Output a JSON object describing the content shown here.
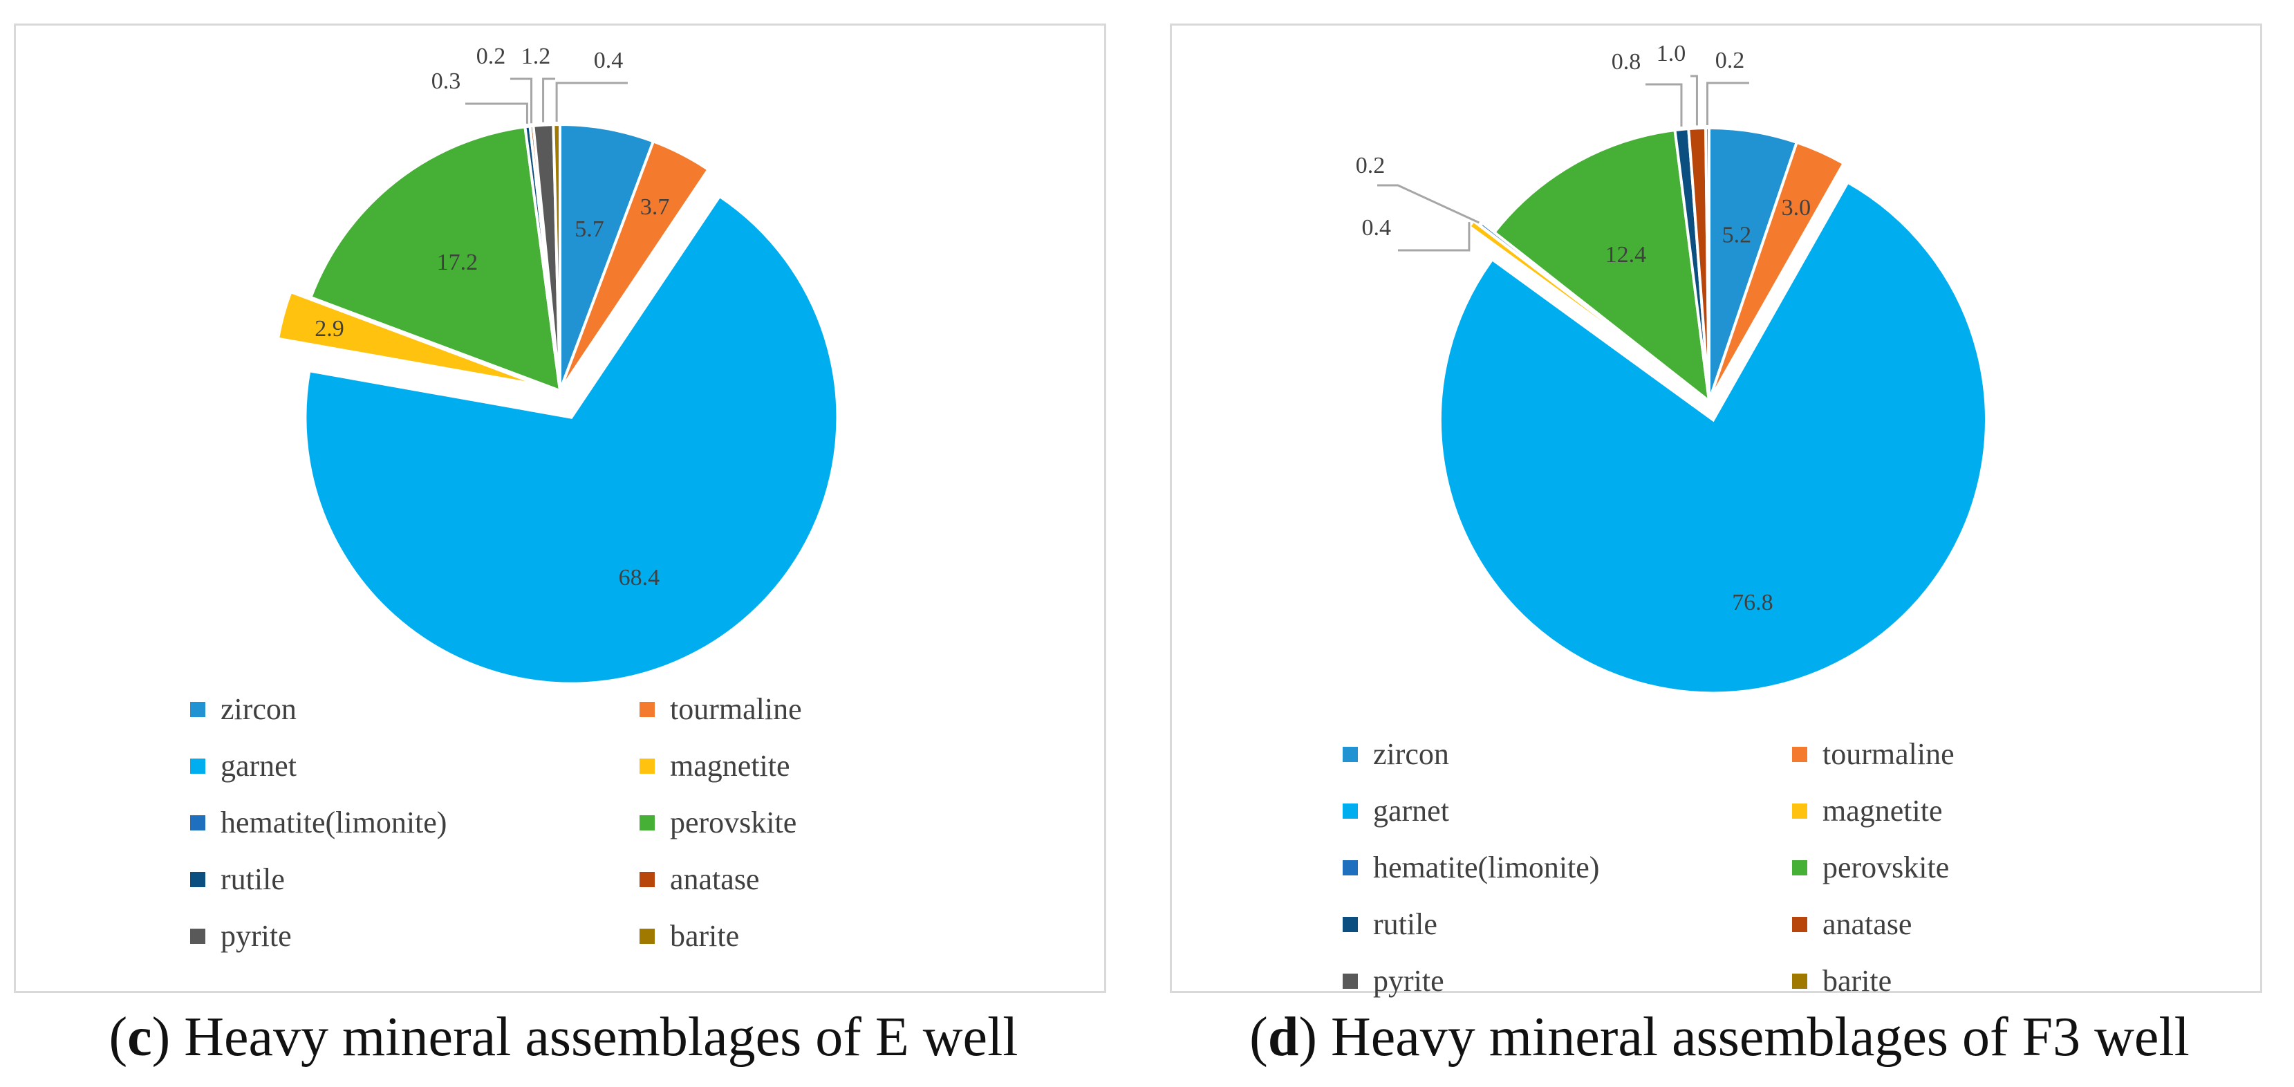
{
  "legend_categories": [
    "zircon",
    "tourmaline",
    "garnet",
    "magnetite",
    "hematite(limonite)",
    "perovskite",
    "rutile",
    "anatase",
    "pyrite",
    "barite"
  ],
  "colors": {
    "zircon": "#2193D3",
    "tourmaline": "#F47B2E",
    "garnet": "#00AEEF",
    "magnetite": "#FFC20E",
    "hematite(limonite)": "#1F6FBF",
    "perovskite": "#45B035",
    "rutile": "#0A4F80",
    "anatase": "#B8460B",
    "pyrite": "#595959",
    "barite": "#A07A00"
  },
  "chart_data": [
    {
      "type": "pie",
      "title": "Heavy mineral assemblages of E well",
      "panel_letter": "c",
      "caption_text": "Heavy mineral assemblages of E well",
      "slices": [
        {
          "name": "zircon",
          "value": 5.7,
          "label": "5.7"
        },
        {
          "name": "tourmaline",
          "value": 3.7,
          "label": "3.7"
        },
        {
          "name": "garnet",
          "value": 68.4,
          "label": "68.4"
        },
        {
          "name": "magnetite",
          "value": 2.9,
          "label": "2.9"
        },
        {
          "name": "perovskite",
          "value": 17.2,
          "label": "17.2"
        },
        {
          "name": "rutile",
          "value": 0.3,
          "label": "0.3"
        },
        {
          "name": "anatase",
          "value": 0.2,
          "label": "0.2"
        },
        {
          "name": "pyrite",
          "value": 1.2,
          "label": "1.2"
        },
        {
          "name": "barite",
          "value": 0.4,
          "label": "0.4"
        }
      ]
    },
    {
      "type": "pie",
      "title": "Heavy mineral assemblages of F3 well",
      "panel_letter": "d",
      "caption_text": "Heavy mineral assemblages of F3 well",
      "slices": [
        {
          "name": "zircon",
          "value": 5.2,
          "label": "5.2"
        },
        {
          "name": "tourmaline",
          "value": 3.0,
          "label": "3.0"
        },
        {
          "name": "garnet",
          "value": 76.8,
          "label": "76.8"
        },
        {
          "name": "magnetite",
          "value": 0.4,
          "label": "0.4"
        },
        {
          "name": "hematite(limonite)",
          "value": 0.2,
          "label": "0.2"
        },
        {
          "name": "perovskite",
          "value": 12.4,
          "label": "12.4"
        },
        {
          "name": "rutile",
          "value": 0.8,
          "label": "0.8"
        },
        {
          "name": "anatase",
          "value": 1.0,
          "label": "1.0"
        },
        {
          "name": "barite",
          "value": 0.2,
          "label": "0.2"
        }
      ]
    }
  ]
}
